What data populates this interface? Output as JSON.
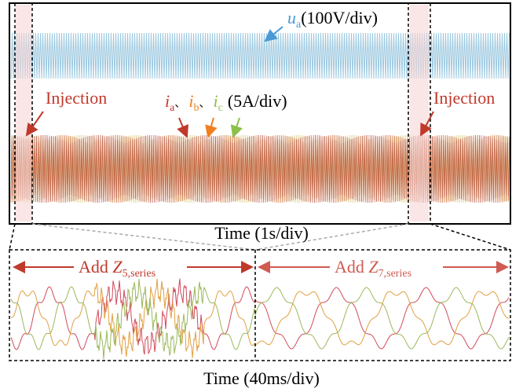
{
  "top_panel": {
    "voltage_label": {
      "symbol": "u",
      "subscript": "a",
      "scale": "(100V/div)"
    },
    "current_label": {
      "items": [
        {
          "symbol": "i",
          "subscript": "a",
          "separator": "、"
        },
        {
          "symbol": "i",
          "subscript": "b",
          "separator": "、"
        },
        {
          "symbol": "i",
          "subscript": "c"
        }
      ],
      "scale": "(5A/div)"
    },
    "injection_labels": [
      "Injection",
      "Injection"
    ],
    "x_label": "Time (1s/div)"
  },
  "bottom_panel": {
    "segments": [
      {
        "prefix": "Add ",
        "symbol": "Z",
        "subscript": "5,series"
      },
      {
        "prefix": "Add ",
        "symbol": "Z",
        "subscript": "7,series"
      }
    ],
    "x_label": "Time (40ms/div)"
  }
}
